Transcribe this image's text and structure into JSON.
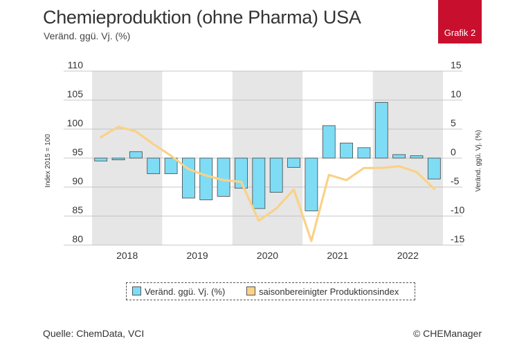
{
  "header": {
    "title": "Chemieproduktion (ohne Pharma) USA",
    "subtitle": "Veränd. ggü. Vj. (%)",
    "badge": "Grafik 2"
  },
  "footer": {
    "source": "Quelle: ChemData, VCI",
    "credit": "© CHEManager"
  },
  "colors": {
    "bar_fill": "#7fdcf5",
    "bar_stroke": "#444444",
    "line": "#f9d287",
    "band": "#e6e6e6",
    "badge": "#c8102e"
  },
  "chart_data": {
    "type": "bar",
    "title": "Chemieproduktion (ohne Pharma) USA",
    "subtitle": "Veränd. ggü. Vj. (%)",
    "y_left_label": "Index 2015 = 100",
    "y_right_label": "Veränd. ggü. Vj. (%)",
    "y_left_ticks": [
      "110",
      "105",
      "100",
      "95",
      "90",
      "85",
      "80"
    ],
    "y_right_ticks": [
      "15",
      "10",
      "5",
      "0",
      "-5",
      "-10",
      "-15"
    ],
    "y_left_range": [
      80,
      110
    ],
    "y_right_range": [
      -15,
      15
    ],
    "grid": true,
    "years": [
      "2018",
      "2019",
      "2020",
      "2021",
      "2022"
    ],
    "legend_position": "bottom",
    "series": [
      {
        "name": "Veränd. ggü. Vj. (%)",
        "type": "bar",
        "axis": "right",
        "values": [
          -0.5,
          -0.3,
          1.1,
          -2.7,
          -2.7,
          -6.9,
          -7.2,
          -6.6,
          -5.2,
          -8.7,
          -5.9,
          -1.6,
          -9.1,
          5.6,
          2.6,
          1.8,
          9.6,
          0.6,
          0.4,
          -3.6
        ]
      },
      {
        "name": "saisonbereinigter Produktionsindex",
        "type": "line",
        "axis": "left",
        "values": [
          98.6,
          100.4,
          99.6,
          97.4,
          95.4,
          93.1,
          92.0,
          91.2,
          90.9,
          84.2,
          86.3,
          89.6,
          80.7,
          92.1,
          91.2,
          93.3,
          93.3,
          93.6,
          92.6,
          89.7
        ]
      }
    ]
  }
}
